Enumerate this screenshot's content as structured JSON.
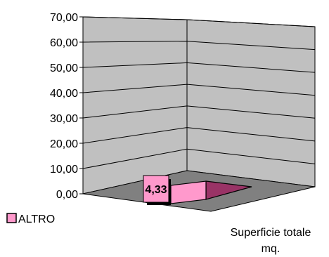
{
  "chart_data": {
    "type": "bar",
    "categories": [
      "Superficie totale mq."
    ],
    "xlabel_lines": [
      "Superficie totale",
      "mq."
    ],
    "series": [
      {
        "name": "ALTRO",
        "values": [
          4.33
        ],
        "value_labels": [
          "4,33"
        ]
      }
    ],
    "yticks": [
      "0,00",
      "10,00",
      "20,00",
      "30,00",
      "40,00",
      "50,00",
      "60,00",
      "70,00"
    ],
    "ylim": [
      0,
      70
    ],
    "grid": true,
    "legend": "left",
    "colors": {
      "wall": "#c0c0c0",
      "floor": "#808080",
      "bar_front": "#ff99cc",
      "bar_side": "#993366",
      "label_bg": "#ff99cc"
    }
  }
}
